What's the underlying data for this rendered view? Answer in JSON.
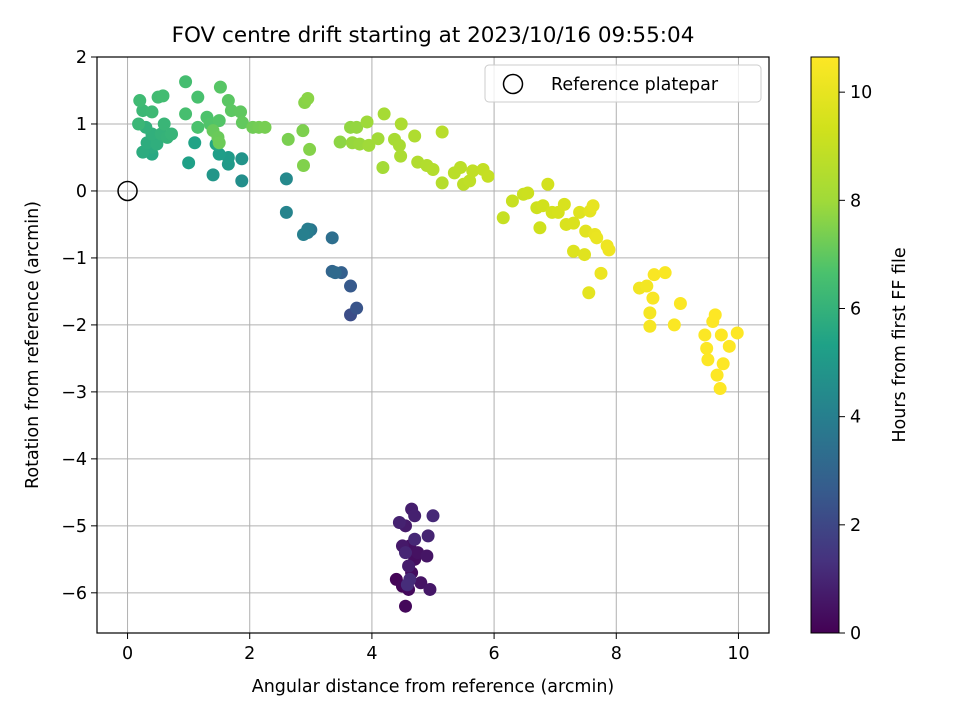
{
  "chart_data": {
    "type": "scatter",
    "title": "FOV centre drift starting at 2023/10/16 09:55:04",
    "xlabel": "Angular distance from reference (arcmin)",
    "ylabel": "Rotation from reference (arcmin)",
    "xlim": [
      -0.5,
      10.5
    ],
    "ylim": [
      -6.6,
      2.0
    ],
    "xticks": [
      0,
      2,
      4,
      6,
      8,
      10
    ],
    "xtick_labels": [
      "0",
      "2",
      "4",
      "6",
      "8",
      "10"
    ],
    "yticks": [
      2,
      1,
      0,
      -1,
      -2,
      -3,
      -4,
      -5,
      -6
    ],
    "ytick_labels": [
      "2",
      "1",
      "0",
      "−1",
      "−2",
      "−3",
      "−4",
      "−5",
      "−6"
    ],
    "grid": true,
    "legend": {
      "placement": "top-right",
      "entries": [
        "Reference platepar"
      ]
    },
    "colorbar": {
      "label": "Hours from first FF file",
      "colormap": "viridis",
      "range": [
        0,
        10.65
      ],
      "ticks": [
        0,
        2,
        4,
        6,
        8,
        10
      ],
      "tick_labels": [
        "0",
        "2",
        "4",
        "6",
        "8",
        "10"
      ]
    },
    "reference_point": {
      "name": "Reference platepar",
      "x": 0,
      "y": 0
    },
    "points": [
      [
        4.4,
        -5.8,
        0.1
      ],
      [
        4.5,
        -5.9,
        0.15
      ],
      [
        4.55,
        -6.2,
        0.2
      ],
      [
        4.6,
        -5.95,
        0.25
      ],
      [
        4.65,
        -5.7,
        0.3
      ],
      [
        4.7,
        -5.5,
        0.35
      ],
      [
        4.62,
        -5.3,
        0.4
      ],
      [
        4.75,
        -5.4,
        0.45
      ],
      [
        4.8,
        -5.85,
        0.5
      ],
      [
        4.9,
        -5.45,
        0.55
      ],
      [
        4.95,
        -5.95,
        0.6
      ],
      [
        4.5,
        -5.3,
        0.65
      ],
      [
        4.55,
        -5.0,
        0.7
      ],
      [
        4.6,
        -5.6,
        0.75
      ],
      [
        4.65,
        -4.75,
        0.8
      ],
      [
        4.7,
        -4.85,
        0.85
      ],
      [
        4.45,
        -4.95,
        0.9
      ],
      [
        4.92,
        -5.15,
        0.95
      ],
      [
        4.55,
        -5.4,
        1.0
      ],
      [
        4.7,
        -5.2,
        1.05
      ],
      [
        5.0,
        -4.85,
        1.1
      ],
      [
        4.62,
        -5.8,
        1.15
      ],
      [
        4.58,
        -5.88,
        1.2
      ],
      [
        3.65,
        -1.85,
        2.2
      ],
      [
        3.75,
        -1.75,
        2.4
      ],
      [
        3.65,
        -1.42,
        2.6
      ],
      [
        3.5,
        -1.22,
        2.8
      ],
      [
        3.35,
        -1.2,
        3.0
      ],
      [
        3.4,
        -1.22,
        3.2
      ],
      [
        3.35,
        -0.7,
        3.4
      ],
      [
        3.0,
        -0.58,
        3.6
      ],
      [
        2.95,
        -0.62,
        3.8
      ],
      [
        2.95,
        -0.57,
        3.9
      ],
      [
        2.88,
        -0.65,
        4.0
      ],
      [
        2.6,
        -0.32,
        4.2
      ],
      [
        2.6,
        0.18,
        4.4
      ],
      [
        1.87,
        0.15,
        4.6
      ],
      [
        1.87,
        0.48,
        4.8
      ],
      [
        1.4,
        0.24,
        4.9
      ],
      [
        1.65,
        0.4,
        5.0
      ],
      [
        1.65,
        0.5,
        5.1
      ],
      [
        1.5,
        0.55,
        5.2
      ],
      [
        1.0,
        0.42,
        5.3
      ],
      [
        1.1,
        0.72,
        5.4
      ],
      [
        1.45,
        0.7,
        5.5
      ],
      [
        0.4,
        0.55,
        5.6
      ],
      [
        0.4,
        0.65,
        5.7
      ],
      [
        0.25,
        0.58,
        5.75
      ],
      [
        0.32,
        0.72,
        5.8
      ],
      [
        0.48,
        0.7,
        5.85
      ],
      [
        0.4,
        0.85,
        5.9
      ],
      [
        0.3,
        0.95,
        5.95
      ],
      [
        0.55,
        0.85,
        6.0
      ],
      [
        0.65,
        0.8,
        6.05
      ],
      [
        0.72,
        0.85,
        6.1
      ],
      [
        0.6,
        1.0,
        6.15
      ],
      [
        0.18,
        1.0,
        6.2
      ],
      [
        0.25,
        1.2,
        6.25
      ],
      [
        0.4,
        1.18,
        6.3
      ],
      [
        0.2,
        1.35,
        6.35
      ],
      [
        0.5,
        1.4,
        6.4
      ],
      [
        0.58,
        1.42,
        6.45
      ],
      [
        0.95,
        1.63,
        6.5
      ],
      [
        0.95,
        1.15,
        6.55
      ],
      [
        1.15,
        1.4,
        6.6
      ],
      [
        1.15,
        0.95,
        6.65
      ],
      [
        1.3,
        1.1,
        6.7
      ],
      [
        1.35,
        1.0,
        6.75
      ],
      [
        1.5,
        1.05,
        6.8
      ],
      [
        1.52,
        1.55,
        6.85
      ],
      [
        1.65,
        1.35,
        6.9
      ],
      [
        1.7,
        1.2,
        6.95
      ],
      [
        1.85,
        1.18,
        7.0
      ],
      [
        1.88,
        1.02,
        7.05
      ],
      [
        1.4,
        0.9,
        7.1
      ],
      [
        1.48,
        0.8,
        7.15
      ],
      [
        1.5,
        0.72,
        7.2
      ],
      [
        2.05,
        0.95,
        7.25
      ],
      [
        2.15,
        0.95,
        7.3
      ],
      [
        2.25,
        0.95,
        7.35
      ],
      [
        2.63,
        0.77,
        7.4
      ],
      [
        2.87,
        0.9,
        7.45
      ],
      [
        2.88,
        0.38,
        7.5
      ],
      [
        2.98,
        0.62,
        7.55
      ],
      [
        2.9,
        1.32,
        7.6
      ],
      [
        2.95,
        1.38,
        7.65
      ],
      [
        3.48,
        0.73,
        7.7
      ],
      [
        3.65,
        0.95,
        7.75
      ],
      [
        3.75,
        0.95,
        7.8
      ],
      [
        3.68,
        0.72,
        7.85
      ],
      [
        3.8,
        0.7,
        7.9
      ],
      [
        3.92,
        1.03,
        7.95
      ],
      [
        3.95,
        0.68,
        8.0
      ],
      [
        4.1,
        0.78,
        8.05
      ],
      [
        4.18,
        0.35,
        8.1
      ],
      [
        4.2,
        1.15,
        8.15
      ],
      [
        4.37,
        0.77,
        8.2
      ],
      [
        4.45,
        0.68,
        8.25
      ],
      [
        4.47,
        0.52,
        8.3
      ],
      [
        4.48,
        1.0,
        8.35
      ],
      [
        4.7,
        0.82,
        8.4
      ],
      [
        4.75,
        0.43,
        8.45
      ],
      [
        4.9,
        0.38,
        8.5
      ],
      [
        5.0,
        0.32,
        8.55
      ],
      [
        5.15,
        0.12,
        8.6
      ],
      [
        5.15,
        0.88,
        8.65
      ],
      [
        5.35,
        0.27,
        8.7
      ],
      [
        5.45,
        0.35,
        8.75
      ],
      [
        5.5,
        0.1,
        8.8
      ],
      [
        5.6,
        0.15,
        8.85
      ],
      [
        5.65,
        0.3,
        8.9
      ],
      [
        5.82,
        0.32,
        8.95
      ],
      [
        5.9,
        0.22,
        9.0
      ],
      [
        6.15,
        -0.4,
        9.05
      ],
      [
        6.3,
        -0.15,
        9.1
      ],
      [
        6.48,
        -0.05,
        9.15
      ],
      [
        6.55,
        -0.03,
        9.2
      ],
      [
        6.7,
        -0.25,
        9.25
      ],
      [
        6.75,
        -0.55,
        9.3
      ],
      [
        6.8,
        -0.22,
        9.35
      ],
      [
        6.88,
        0.1,
        9.4
      ],
      [
        6.95,
        -0.32,
        9.45
      ],
      [
        7.05,
        -0.32,
        9.5
      ],
      [
        7.15,
        -0.2,
        9.55
      ],
      [
        7.18,
        -0.5,
        9.6
      ],
      [
        7.3,
        -0.48,
        9.65
      ],
      [
        7.3,
        -0.9,
        9.7
      ],
      [
        7.4,
        -0.32,
        9.75
      ],
      [
        7.48,
        -0.95,
        9.8
      ],
      [
        7.5,
        -0.6,
        9.85
      ],
      [
        7.55,
        -1.52,
        9.9
      ],
      [
        7.57,
        -0.3,
        9.95
      ],
      [
        7.62,
        -0.22,
        10.0
      ],
      [
        7.65,
        -0.65,
        10.05
      ],
      [
        7.68,
        -0.7,
        10.1
      ],
      [
        7.75,
        -1.23,
        10.15
      ],
      [
        7.85,
        -0.82,
        10.2
      ],
      [
        7.88,
        -0.88,
        10.25
      ],
      [
        8.38,
        -1.45,
        10.3
      ],
      [
        8.5,
        -1.42,
        10.35
      ],
      [
        8.55,
        -1.82,
        10.4
      ],
      [
        8.55,
        -2.02,
        10.45
      ],
      [
        8.6,
        -1.6,
        10.5
      ],
      [
        8.62,
        -1.25,
        10.52
      ],
      [
        8.8,
        -1.22,
        10.54
      ],
      [
        8.95,
        -2.0,
        10.56
      ],
      [
        9.05,
        -1.68,
        10.58
      ],
      [
        9.45,
        -2.15,
        10.6
      ],
      [
        9.48,
        -2.35,
        10.61
      ],
      [
        9.5,
        -2.52,
        10.62
      ],
      [
        9.58,
        -1.95,
        10.63
      ],
      [
        9.62,
        -1.85,
        10.64
      ],
      [
        9.65,
        -2.75,
        10.65
      ],
      [
        9.7,
        -2.95,
        10.65
      ],
      [
        9.72,
        -2.15,
        10.65
      ],
      [
        9.75,
        -2.58,
        10.65
      ],
      [
        9.85,
        -2.32,
        10.65
      ],
      [
        9.98,
        -2.12,
        10.65
      ]
    ]
  }
}
